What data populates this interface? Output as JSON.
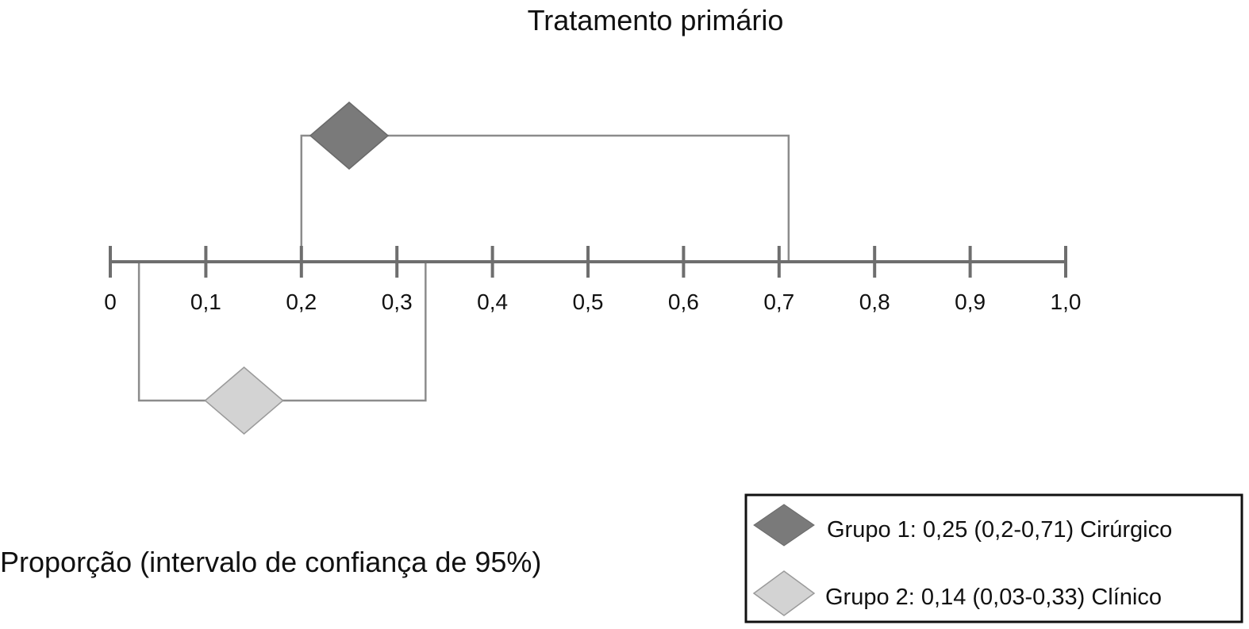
{
  "chart_data": {
    "type": "forest",
    "title": "Tratamento primário",
    "xlabel": "Proporção (intervalo de confiança de 95%)",
    "xlim": [
      0,
      1.0
    ],
    "ticks": [
      0,
      0.1,
      0.2,
      0.3,
      0.4,
      0.5,
      0.6,
      0.7,
      0.8,
      0.9,
      1.0
    ],
    "tick_labels": [
      "0",
      "0,1",
      "0,2",
      "0,3",
      "0,4",
      "0,5",
      "0,6",
      "0,7",
      "0,8",
      "0,9",
      "1,0"
    ],
    "series": [
      {
        "estimate": 0.25,
        "ci_low": 0.2,
        "ci_high": 0.71,
        "position": "above-axis",
        "color": "#7a7a7a",
        "legend": "Grupo 1: 0,25 (0,2-0,71) Cirúrgico"
      },
      {
        "estimate": 0.14,
        "ci_low": 0.03,
        "ci_high": 0.33,
        "position": "below-axis",
        "color": "#d3d3d3",
        "legend": "Grupo 2: 0,14 (0,03-0,33) Clínico"
      }
    ],
    "legend_position": "bottom-right",
    "axis_color": "#6e6e6e",
    "bracket_color": "#8c8c8c"
  }
}
